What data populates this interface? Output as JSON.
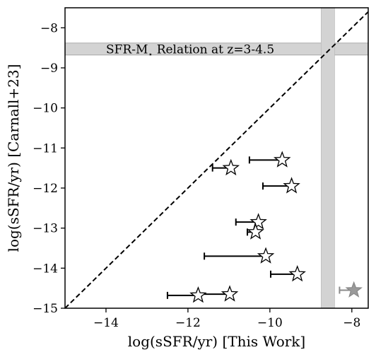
{
  "chart_data": {
    "type": "scatter",
    "xlabel": "log(sSFR/yr) [This Work]",
    "ylabel": "log(sSFR/yr) [Carnall+23]",
    "xlim": [
      -15,
      -7.6
    ],
    "ylim": [
      -15,
      -7.5
    ],
    "xticks": [
      -14,
      -12,
      -10,
      -8
    ],
    "xtick_labels": [
      "−14",
      "−12",
      "−10",
      "−8"
    ],
    "yticks": [
      -15,
      -14,
      -13,
      -12,
      -11,
      -10,
      -9,
      -8
    ],
    "ytick_labels": [
      "−15",
      "−14",
      "−13",
      "−12",
      "−11",
      "−10",
      "−9",
      "−8"
    ],
    "one_to_one_line": true,
    "band_horizontal": {
      "y_range": [
        -8.68,
        -8.38
      ],
      "label_main": "SFR-M",
      "label_sub": "⋆",
      "label_rest": " Relation at z=3-4.5",
      "color": "#d3d3d3"
    },
    "band_vertical": {
      "x_range": [
        -8.75,
        -8.42
      ],
      "color": "#d3d3d3"
    },
    "points": [
      {
        "x": -9.7,
        "y": -11.3,
        "xerr_low": 0.8,
        "faded": false
      },
      {
        "x": -10.95,
        "y": -11.5,
        "xerr_low": 0.45,
        "faded": false
      },
      {
        "x": -9.47,
        "y": -11.95,
        "xerr_low": 0.7,
        "faded": false
      },
      {
        "x": -10.28,
        "y": -12.85,
        "xerr_low": 0.55,
        "faded": false
      },
      {
        "x": -10.35,
        "y": -13.1,
        "xerr_low": 0.2,
        "faded": false
      },
      {
        "x": -10.1,
        "y": -13.7,
        "xerr_low": 1.5,
        "faded": false
      },
      {
        "x": -9.33,
        "y": -14.15,
        "xerr_low": 0.65,
        "faded": false
      },
      {
        "x": -10.98,
        "y": -14.65,
        "xerr_low": 0.8,
        "faded": false
      },
      {
        "x": -11.75,
        "y": -14.68,
        "xerr_low": 0.75,
        "faded": false
      },
      {
        "x": -7.95,
        "y": -14.55,
        "xerr_low": 0.35,
        "faded": true
      }
    ]
  }
}
